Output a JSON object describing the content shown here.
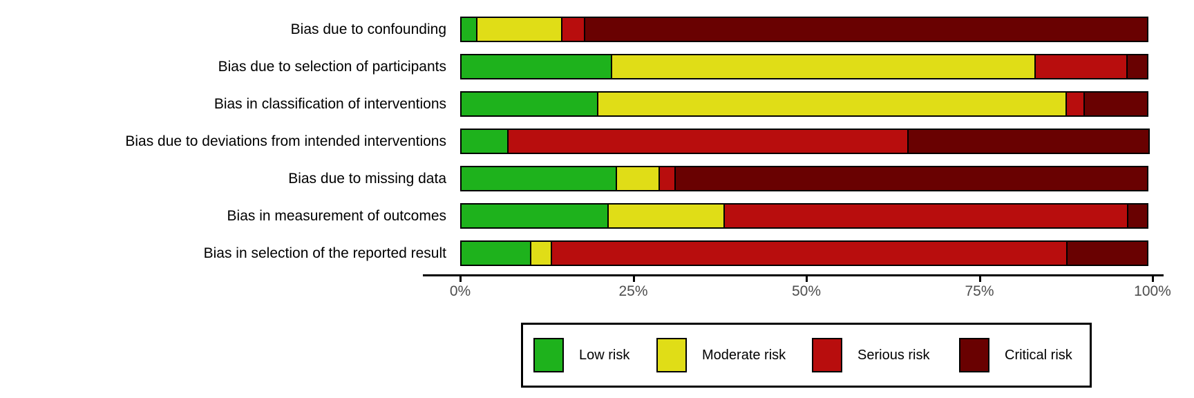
{
  "chart_data": {
    "type": "bar",
    "orientation": "horizontal",
    "stacked": true,
    "unit": "percent",
    "title": "",
    "xlabel": "",
    "ylabel": "",
    "xlim": [
      0,
      100
    ],
    "x_ticks": [
      "0%",
      "25%",
      "50%",
      "75%",
      "100%"
    ],
    "grid": false,
    "legend_position": "bottom",
    "categories": [
      "Bias due to confounding",
      "Bias due to selection of participants",
      "Bias in classification of interventions",
      "Bias due to deviations from intended interventions",
      "Bias due to missing data",
      "Bias in measurement of outcomes",
      "Bias in selection of the reported result"
    ],
    "series": [
      {
        "name": "Low risk",
        "color": "#1eb21c",
        "values": [
          2.5,
          22.0,
          20.0,
          7.0,
          22.7,
          21.5,
          10.3
        ]
      },
      {
        "name": "Moderate risk",
        "color": "#e0dd17",
        "values": [
          12.5,
          61.3,
          67.8,
          0.0,
          6.3,
          16.9,
          3.2
        ]
      },
      {
        "name": "Serious risk",
        "color": "#b80d0d",
        "values": [
          3.5,
          13.5,
          2.8,
          58.0,
          2.5,
          58.5,
          74.6
        ]
      },
      {
        "name": "Critical risk",
        "color": "#690101",
        "values": [
          81.5,
          3.2,
          9.4,
          35.0,
          68.5,
          3.1,
          11.9
        ]
      }
    ],
    "colors": {
      "low_risk": "#1eb21c",
      "moderate_risk": "#e0dd17",
      "serious_risk": "#b80d0d",
      "critical_risk": "#690101",
      "outline": "#000000",
      "tick_label": "#4d4d4d"
    }
  },
  "legend": {
    "items": [
      {
        "label": "Low risk",
        "color": "#1eb21c"
      },
      {
        "label": "Moderate risk",
        "color": "#e0dd17"
      },
      {
        "label": "Serious risk",
        "color": "#b80d0d"
      },
      {
        "label": "Critical risk",
        "color": "#690101"
      }
    ]
  }
}
